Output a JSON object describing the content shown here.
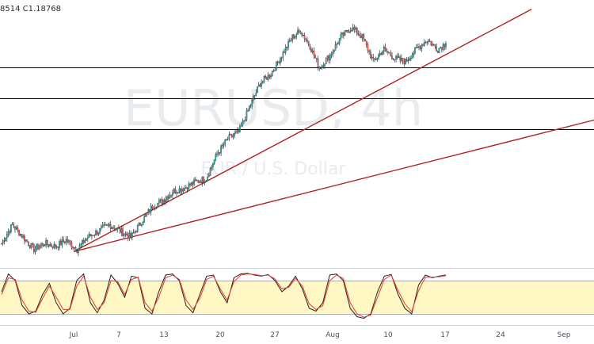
{
  "readout": {
    "text": "8514  C1.18768"
  },
  "watermark": {
    "main": "EURUSD, 4h",
    "sub": "EUR / U.S. Dollar"
  },
  "colors": {
    "bull": "#26a69a",
    "bear": "#ef5350",
    "candle_outline": "#2a2e39",
    "trendline": "#b22222",
    "hline": "#000000",
    "stoch_k": "#222222",
    "stoch_d": "#e53935",
    "stoch_band": "#fff8c4"
  },
  "chart_data": [
    {
      "type": "candlestick",
      "series": [
        {
          "name": "EURUSD",
          "sampling": "approx. 4h bars",
          "x": "bar index",
          "close_path": [
            [
              0,
              1.163
            ],
            [
              8,
              1.169
            ],
            [
              16,
              1.165
            ],
            [
              24,
              1.161
            ],
            [
              32,
              1.163
            ],
            [
              40,
              1.162
            ],
            [
              48,
              1.164
            ],
            [
              56,
              1.161
            ],
            [
              64,
              1.165
            ],
            [
              72,
              1.167
            ],
            [
              80,
              1.169
            ],
            [
              88,
              1.167
            ],
            [
              96,
              1.165
            ],
            [
              104,
              1.17
            ],
            [
              112,
              1.175
            ],
            [
              120,
              1.177
            ],
            [
              128,
              1.18
            ],
            [
              136,
              1.181
            ],
            [
              144,
              1.183
            ],
            [
              152,
              1.184
            ],
            [
              160,
              1.192
            ],
            [
              168,
              1.197
            ],
            [
              176,
              1.199
            ],
            [
              184,
              1.207
            ],
            [
              192,
              1.215
            ],
            [
              200,
              1.218
            ],
            [
              208,
              1.224
            ],
            [
              216,
              1.23
            ],
            [
              222,
              1.232
            ],
            [
              228,
              1.228
            ],
            [
              236,
              1.22
            ],
            [
              244,
              1.224
            ],
            [
              252,
              1.23
            ],
            [
              260,
              1.233
            ],
            [
              268,
              1.23
            ],
            [
              276,
              1.222
            ],
            [
              284,
              1.226
            ],
            [
              292,
              1.223
            ],
            [
              300,
              1.222
            ],
            [
              308,
              1.226
            ],
            [
              316,
              1.229
            ],
            [
              324,
              1.226
            ],
            [
              330,
              1.228
            ]
          ]
        }
      ],
      "x_ticks": [
        "Jul",
        "7",
        "13",
        "20",
        "27",
        "Aug",
        "10",
        "17",
        "24",
        "Sep"
      ],
      "horizontal_levels": [
        1.22,
        1.21,
        1.2
      ],
      "trendlines": [
        {
          "from": [
            "2020-07-01",
            1.1603
          ],
          "to": [
            "2020-08-19",
            1.239
          ]
        },
        {
          "from": [
            "2020-07-01",
            1.1603
          ],
          "to": [
            "2020-09-03",
            1.2094
          ]
        }
      ],
      "ylim": [
        1.155,
        1.242
      ]
    },
    {
      "type": "line",
      "indicator": "stochastic",
      "ylim": [
        0,
        100
      ],
      "band": [
        20,
        80
      ],
      "series": [
        {
          "name": "%K",
          "values": [
            60,
            92,
            80,
            35,
            20,
            25,
            55,
            75,
            40,
            20,
            30,
            80,
            92,
            40,
            22,
            45,
            90,
            75,
            50,
            88,
            85,
            30,
            20,
            60,
            90,
            92,
            80,
            35,
            22,
            55,
            88,
            90,
            60,
            40,
            85,
            92,
            93,
            90,
            88,
            91,
            80,
            60,
            70,
            88,
            65,
            30,
            25,
            40,
            90,
            92,
            80,
            30,
            15,
            12,
            20,
            60,
            88,
            91,
            55,
            30,
            20,
            72,
            90,
            85,
            88,
            90
          ]
        },
        {
          "name": "%D",
          "values": [
            55,
            85,
            82,
            45,
            25,
            23,
            48,
            70,
            50,
            28,
            28,
            70,
            88,
            50,
            28,
            40,
            80,
            78,
            55,
            82,
            86,
            40,
            25,
            50,
            85,
            90,
            82,
            45,
            28,
            48,
            82,
            88,
            65,
            45,
            78,
            90,
            92,
            91,
            89,
            90,
            83,
            65,
            68,
            84,
            70,
            38,
            28,
            35,
            80,
            90,
            84,
            40,
            20,
            14,
            18,
            50,
            82,
            90,
            62,
            38,
            24,
            62,
            86,
            86,
            87,
            89
          ]
        }
      ]
    }
  ]
}
